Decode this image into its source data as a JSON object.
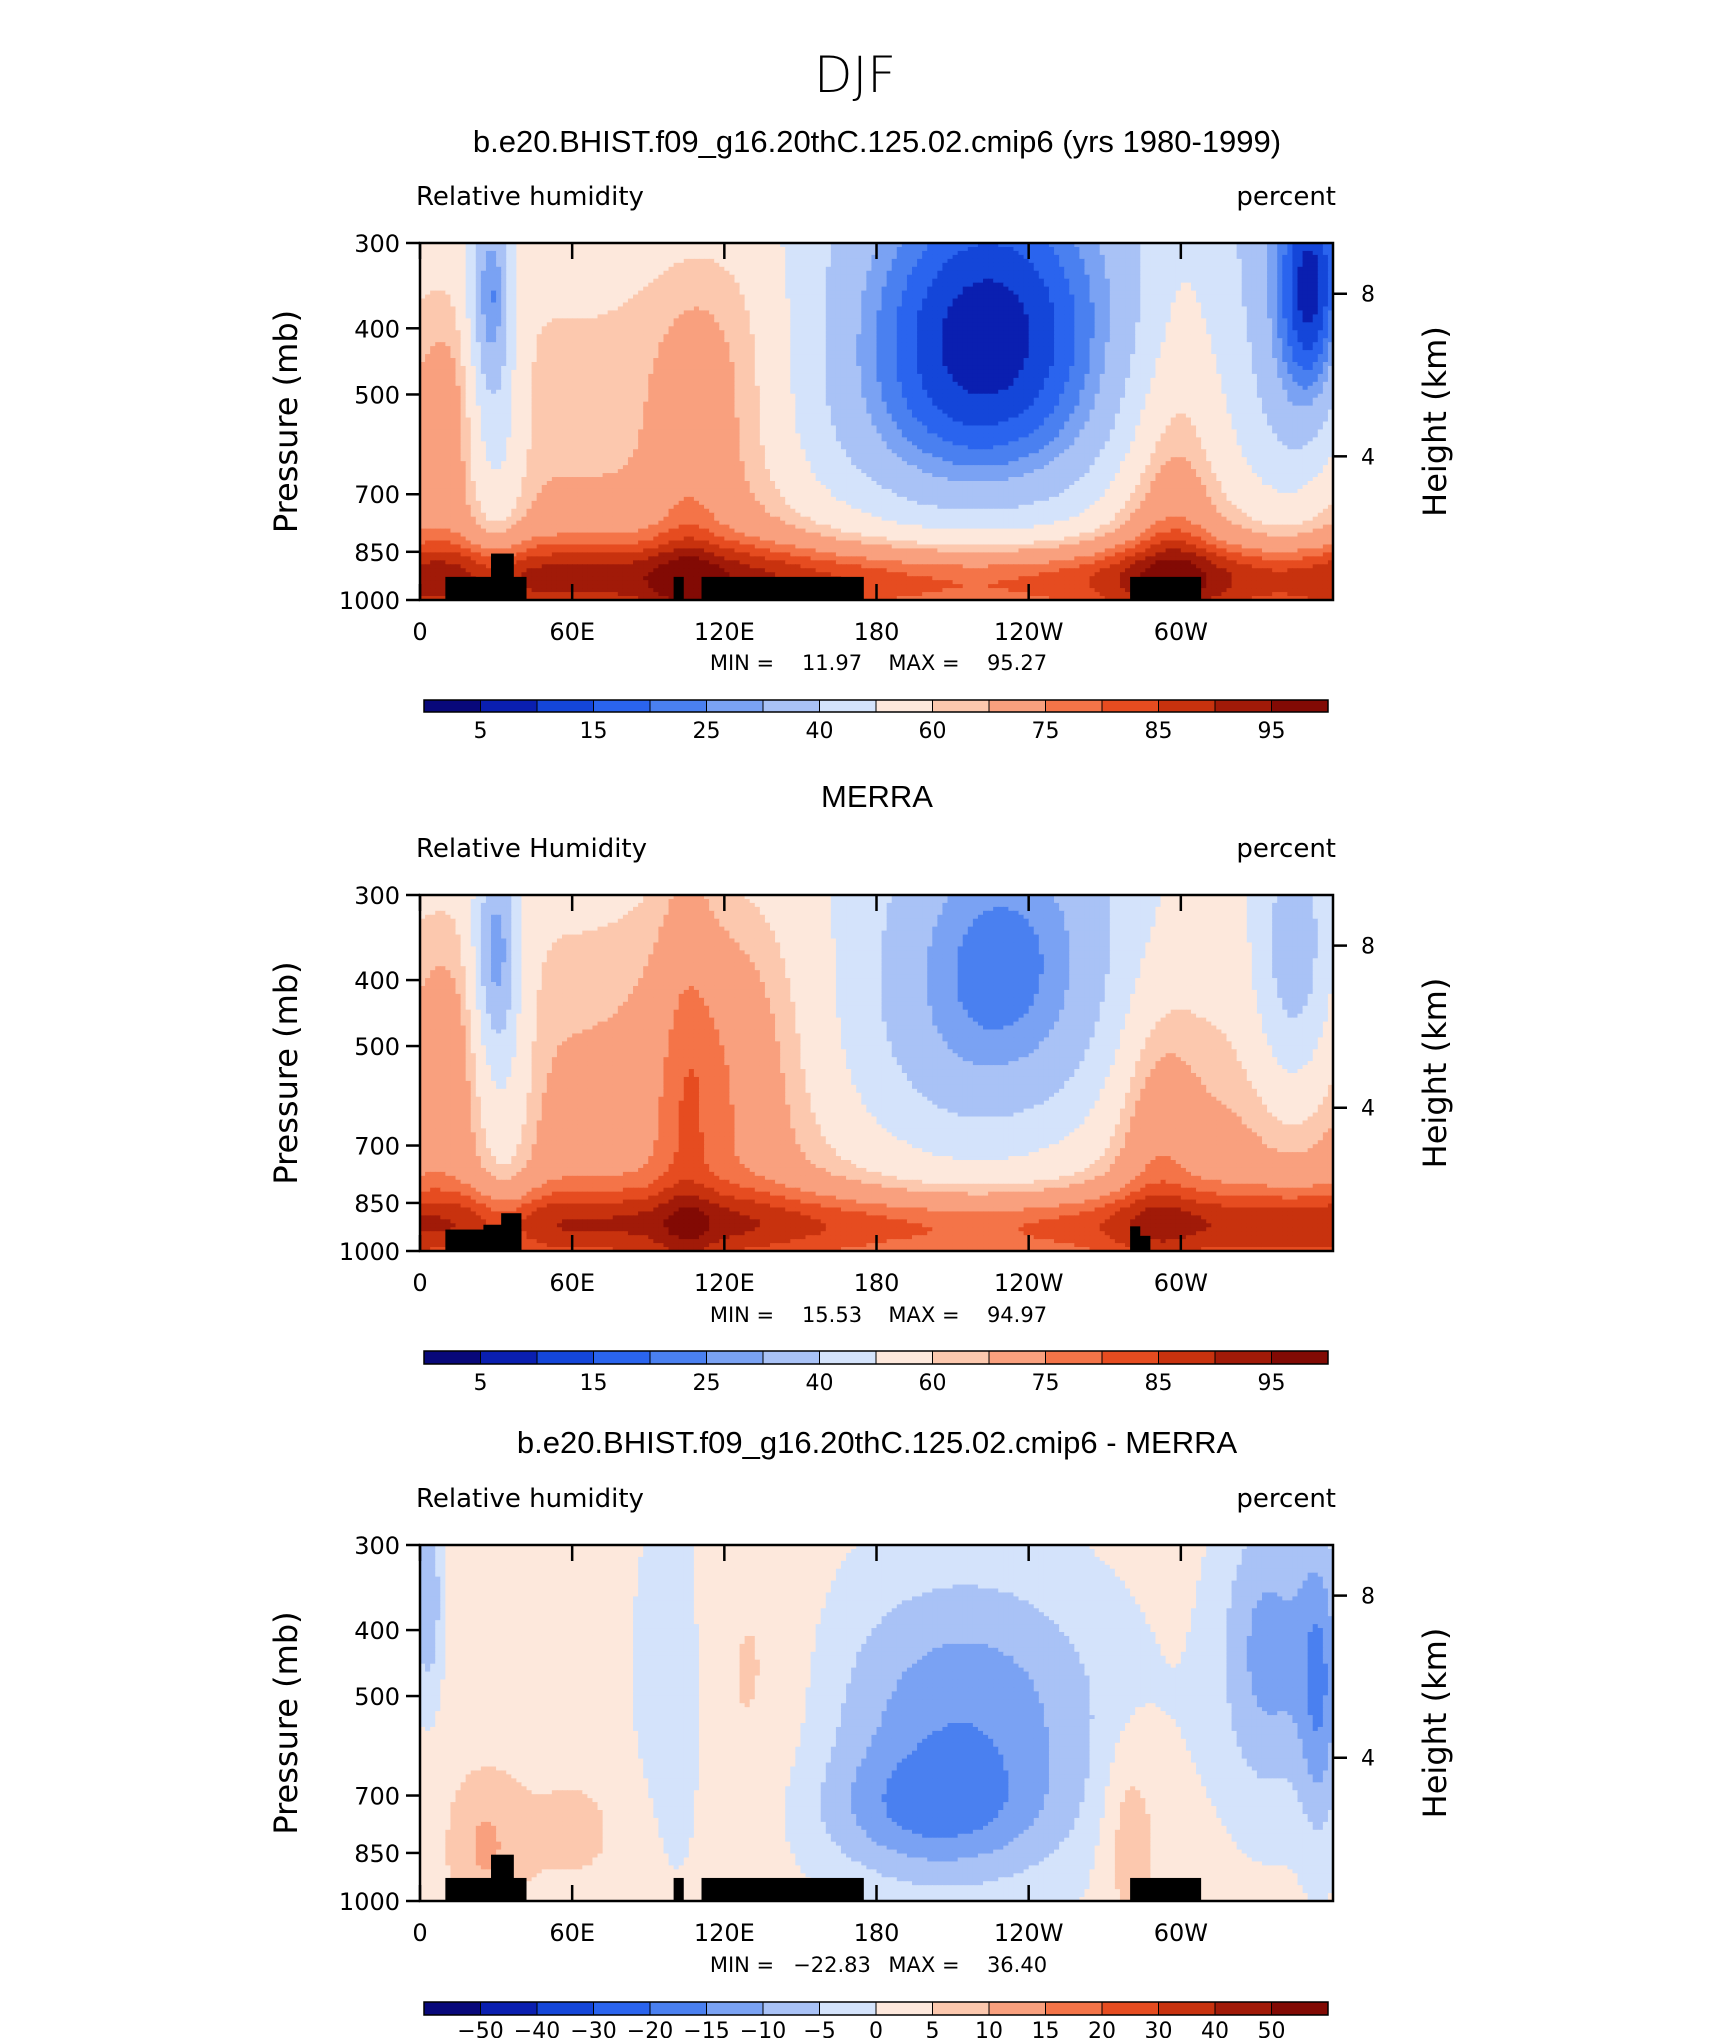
{
  "figure_title": "DJF",
  "colors": {
    "rh_levels": [
      5,
      10,
      15,
      20,
      25,
      30,
      40,
      50,
      60,
      65,
      75,
      80,
      85,
      90,
      95
    ],
    "diff_levels": [
      -50,
      -40,
      -30,
      -20,
      -15,
      -10,
      -5,
      0,
      5,
      10,
      15,
      20,
      30,
      40,
      50
    ],
    "palette": [
      "#08087a",
      "#0a1fb0",
      "#1446d9",
      "#2a64ee",
      "#4a80f0",
      "#7aa2f3",
      "#a9c2f6",
      "#d4e3fb",
      "#fde8dc",
      "#fcc8ae",
      "#f9a07e",
      "#f47448",
      "#e64c20",
      "#c8320e",
      "#a11a08",
      "#820a04"
    ],
    "land": "#000000"
  },
  "chart_data": [
    {
      "type": "heatmap",
      "title": "b.e20.BHIST.f09_g16.20thC.125.02.cmip6 (yrs 1980-1999)",
      "left_label": "Relative humidity",
      "right_label": "percent",
      "ylabel": "Pressure (mb)",
      "ylabel_right": "Height (km)",
      "x_ticks": [
        "0",
        "60E",
        "120E",
        "180",
        "120W",
        "60W"
      ],
      "y_ticks": [
        "300",
        "400",
        "500",
        "700",
        "850",
        "1000"
      ],
      "y_ticks_right": [
        "8",
        "4"
      ],
      "xlim": [
        0,
        360
      ],
      "ylim": [
        1000,
        300
      ],
      "stats": {
        "min_label": "MIN =",
        "min": "11.97",
        "max_label": "MAX =",
        "max": "95.27"
      },
      "colorbar_labels": [
        "5",
        "15",
        "25",
        "40",
        "60",
        "75",
        "85",
        "95"
      ],
      "field": "model"
    },
    {
      "type": "heatmap",
      "title": "MERRA",
      "left_label": "Relative Humidity",
      "right_label": "percent",
      "ylabel": "Pressure (mb)",
      "ylabel_right": "Height (km)",
      "x_ticks": [
        "0",
        "60E",
        "120E",
        "180",
        "120W",
        "60W"
      ],
      "y_ticks": [
        "300",
        "400",
        "500",
        "700",
        "850",
        "1000"
      ],
      "y_ticks_right": [
        "8",
        "4"
      ],
      "xlim": [
        0,
        360
      ],
      "ylim": [
        1000,
        300
      ],
      "stats": {
        "min_label": "MIN =",
        "min": "15.53",
        "max_label": "MAX =",
        "max": "94.97"
      },
      "colorbar_labels": [
        "5",
        "15",
        "25",
        "40",
        "60",
        "75",
        "85",
        "95"
      ],
      "field": "obs"
    },
    {
      "type": "heatmap",
      "title": "b.e20.BHIST.f09_g16.20thC.125.02.cmip6 - MERRA",
      "left_label": "Relative humidity",
      "right_label": "percent",
      "ylabel": "Pressure (mb)",
      "ylabel_right": "Height (km)",
      "x_ticks": [
        "0",
        "60E",
        "120E",
        "180",
        "120W",
        "60W"
      ],
      "y_ticks": [
        "300",
        "400",
        "500",
        "700",
        "850",
        "1000"
      ],
      "y_ticks_right": [
        "8",
        "4"
      ],
      "xlim": [
        0,
        360
      ],
      "ylim": [
        1000,
        300
      ],
      "stats": {
        "min_label": "MIN =",
        "min": "−22.83",
        "max_label": "MAX =",
        "max": "36.40"
      },
      "colorbar_labels": [
        "−50",
        "−40",
        "−30",
        "−20",
        "−15",
        "−10",
        "−5",
        "0",
        "5",
        "10",
        "15",
        "20",
        "30",
        "40",
        "50"
      ],
      "field": "diff"
    }
  ]
}
